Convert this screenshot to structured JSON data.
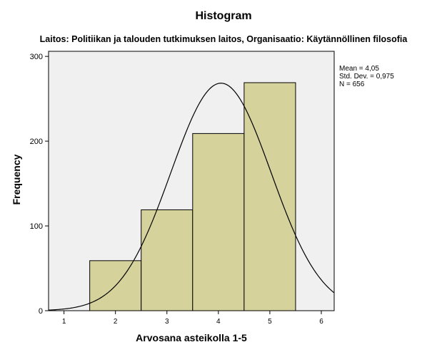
{
  "chart_data": {
    "type": "bar",
    "title": "Histogram",
    "subtitle": "Laitos: Politiikan ja talouden tutkimuksen laitos, Organisaatio: Käytännöllinen filosofia",
    "xlabel": "Arvosana asteikolla 1-5",
    "ylabel": "Frequency",
    "categories": [
      "2",
      "3",
      "4",
      "5"
    ],
    "values": [
      59,
      119,
      209,
      269
    ],
    "bin_width": 1,
    "xlim": [
      0.7,
      6.25
    ],
    "ylim": [
      0,
      300
    ],
    "x_ticks": [
      1,
      2,
      3,
      4,
      5,
      6
    ],
    "y_ticks": [
      0,
      100,
      200,
      300
    ],
    "normal_curve": {
      "mean": 4.05,
      "sd": 0.975,
      "n": 656
    },
    "stats_box": [
      "Mean = 4,05",
      "Std. Dev. = 0,975",
      "N = 656"
    ],
    "colors": {
      "bar_fill": "#d6d29c",
      "bar_stroke": "#000000",
      "plot_bg": "#f0f0f0"
    }
  }
}
